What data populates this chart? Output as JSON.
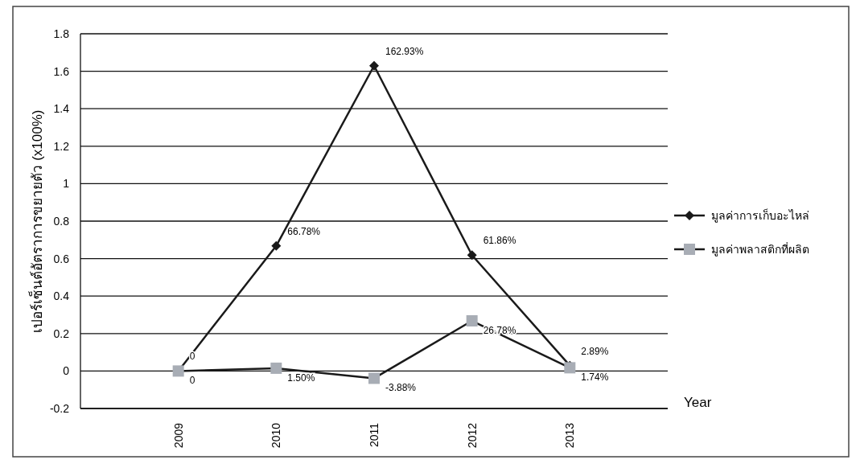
{
  "chart_data": {
    "type": "line",
    "xlabel": "Year",
    "ylabel": "เปอร์เซ็นต์อัตราการขยายตัว (x100%)",
    "categories": [
      "2009",
      "2010",
      "2011",
      "2012",
      "2013"
    ],
    "series": [
      {
        "name": "มูลค่าการเก็บอะไหล่",
        "color": "#1a1a1a",
        "marker": "diamond",
        "values": [
          0,
          0.6678,
          1.6293,
          0.6186,
          0.0289
        ],
        "value_labels": [
          "0",
          "66.78%",
          "162.93%",
          "61.86%",
          "2.89%"
        ]
      },
      {
        "name": "มูลค่าพลาสติกที่ผลิต",
        "color": "#a8adb5",
        "marker": "square",
        "values": [
          0,
          0.015,
          -0.0388,
          0.2678,
          0.0174
        ],
        "value_labels": [
          "0",
          "1.50%",
          "-3.88%",
          "26.78%",
          "1.74%"
        ]
      }
    ],
    "ylim": [
      -0.2,
      1.8
    ],
    "yticks": [
      1.8,
      1.6,
      1.4,
      1.2,
      1,
      0.8,
      0.6,
      0.4,
      0.2,
      0,
      -0.2
    ],
    "grid": "y",
    "legend": "right",
    "line_style": "solid"
  }
}
